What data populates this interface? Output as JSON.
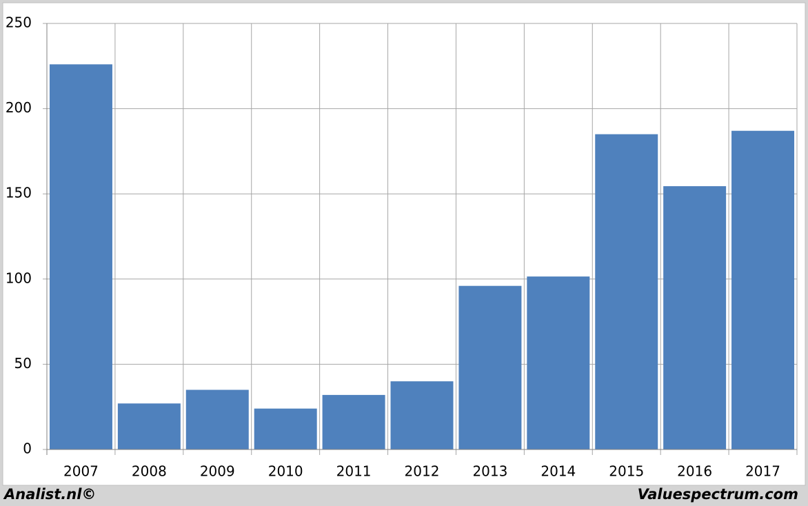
{
  "chart_data": {
    "type": "bar",
    "categories": [
      "2007",
      "2008",
      "2009",
      "2010",
      "2011",
      "2012",
      "2013",
      "2014",
      "2015",
      "2016",
      "2017"
    ],
    "values": [
      226,
      27,
      35,
      24,
      32,
      40,
      96,
      101.5,
      185,
      154.5,
      187
    ],
    "color": "#4f81bd",
    "ylim": [
      0,
      250
    ],
    "yticks": [
      0,
      50,
      100,
      150,
      200,
      250
    ],
    "grid": true,
    "annotations": [
      "Analist.nl©",
      "Valuespectrum.com"
    ]
  }
}
